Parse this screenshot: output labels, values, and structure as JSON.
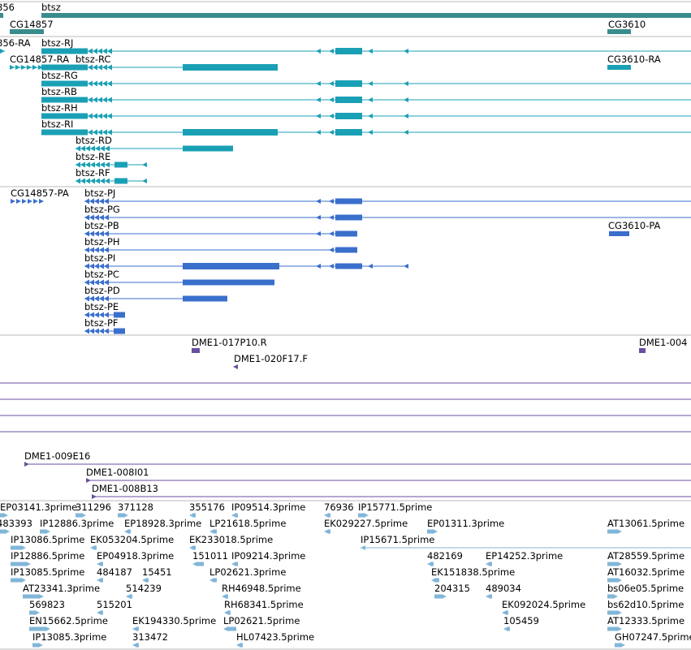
{
  "colors": {
    "gene": "#3a8c8c",
    "mrna_teal": "#1aa0b4",
    "mrna_blue": "#3a6fcc",
    "clone": "#6a4fa0",
    "est": "#82b6d8",
    "divider": "#bbbbbb"
  },
  "genes": {
    "items": [
      {
        "label": "856"
      },
      {
        "label": "btsz"
      },
      {
        "label": "CG14857"
      },
      {
        "label": "CG3610"
      }
    ]
  },
  "transcripts_teal": {
    "items": [
      {
        "label": "856-RA"
      },
      {
        "label": "btsz-RJ"
      },
      {
        "label": "CG14857-RA"
      },
      {
        "label": "btsz-RC"
      },
      {
        "label": "CG3610-RA"
      },
      {
        "label": "btsz-RG"
      },
      {
        "label": "btsz-RB"
      },
      {
        "label": "btsz-RH"
      },
      {
        "label": "btsz-RI"
      },
      {
        "label": "btsz-RD"
      },
      {
        "label": "btsz-RE"
      },
      {
        "label": "btsz-RF"
      }
    ]
  },
  "transcripts_blue": {
    "items": [
      {
        "label": "CG14857-PA"
      },
      {
        "label": "btsz-PJ"
      },
      {
        "label": "btsz-PG"
      },
      {
        "label": "btsz-PB"
      },
      {
        "label": "CG3610-PA"
      },
      {
        "label": "btsz-PH"
      },
      {
        "label": "btsz-PI"
      },
      {
        "label": "btsz-PC"
      },
      {
        "label": "btsz-PD"
      },
      {
        "label": "btsz-PE"
      },
      {
        "label": "btsz-PF"
      }
    ]
  },
  "clones": {
    "items": [
      {
        "label": "DME1-017P10.R"
      },
      {
        "label": "DME1-004"
      },
      {
        "label": "DME1-020F17.F"
      },
      {
        "label": "DME1-009E16"
      },
      {
        "label": "DME1-008I01"
      },
      {
        "label": "DME1-008B13"
      }
    ]
  },
  "ests": {
    "items": [
      {
        "label": "EP03141.3prime"
      },
      {
        "label": "311296"
      },
      {
        "label": "371128"
      },
      {
        "label": "355176"
      },
      {
        "label": "IP09514.3prime"
      },
      {
        "label": "76936"
      },
      {
        "label": "IP15771.5prime"
      },
      {
        "label": "483393"
      },
      {
        "label": "IP12886.3prime"
      },
      {
        "label": "EP18928.3prime"
      },
      {
        "label": "LP21618.5prime"
      },
      {
        "label": "EK029227.5prime"
      },
      {
        "label": "EP01311.3prime"
      },
      {
        "label": "AT13061.5prime"
      },
      {
        "label": "IP13086.5prime"
      },
      {
        "label": "EK053204.5prime"
      },
      {
        "label": "EK233018.5prime"
      },
      {
        "label": "IP15671.5prime"
      },
      {
        "label": "IP12886.5prime"
      },
      {
        "label": "EP04918.3prime"
      },
      {
        "label": "151011"
      },
      {
        "label": "IP09214.3prime"
      },
      {
        "label": "482169"
      },
      {
        "label": "EP14252.3prime"
      },
      {
        "label": "AT28559.5prime"
      },
      {
        "label": "IP13085.5prime"
      },
      {
        "label": "484187"
      },
      {
        "label": "15451"
      },
      {
        "label": "LP02621.3prime"
      },
      {
        "label": "EK151838.5prime"
      },
      {
        "label": "AT16032.5prime"
      },
      {
        "label": "AT23341.3prime"
      },
      {
        "label": "514239"
      },
      {
        "label": "RH46948.5prime"
      },
      {
        "label": "204315"
      },
      {
        "label": "489034"
      },
      {
        "label": "bs06e05.5prime"
      },
      {
        "label": "569823"
      },
      {
        "label": "515201"
      },
      {
        "label": "RH68341.5prime"
      },
      {
        "label": "EK092024.5prime"
      },
      {
        "label": "bs62d10.5prime"
      },
      {
        "label": "EN15662.5prime"
      },
      {
        "label": "EK194330.5prime"
      },
      {
        "label": "LP02621.5prime"
      },
      {
        "label": "105459"
      },
      {
        "label": "AT12333.5prime"
      },
      {
        "label": "IP13085.3prime"
      },
      {
        "label": "313472"
      },
      {
        "label": "HL07423.5prime"
      },
      {
        "label": "GH07247.5prime"
      }
    ]
  }
}
